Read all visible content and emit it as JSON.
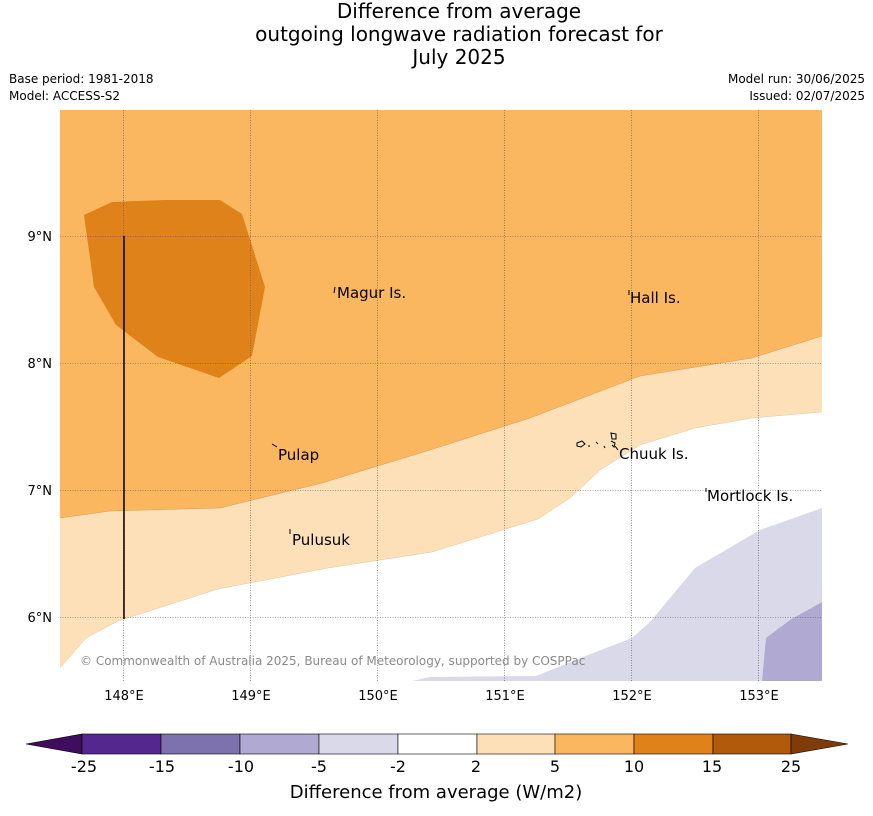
{
  "title": {
    "line1": "Difference from average",
    "line2": "outgoing longwave radiation forecast for",
    "line3": "July 2025"
  },
  "meta": {
    "base_period": "Base period: 1981-2018",
    "model": "Model: ACCESS-S2",
    "model_run": "Model run: 30/06/2025",
    "issued": "Issued: 02/07/2025"
  },
  "map": {
    "lon_ticks": [
      "148°E",
      "149°E",
      "150°E",
      "151°E",
      "152°E",
      "153°E"
    ],
    "lat_ticks": [
      "9°N",
      "8°N",
      "7°N",
      "6°N"
    ],
    "places": [
      {
        "name": "Magur Is."
      },
      {
        "name": "Hall Is."
      },
      {
        "name": "Pulap"
      },
      {
        "name": "Chuuk Is."
      },
      {
        "name": "Mortlock Is."
      },
      {
        "name": "Pulusuk"
      }
    ],
    "credit": "© Commonwealth of Australia 2025, Bureau of Meteorology, supported by COSPPac"
  },
  "legend": {
    "title": "Difference from average (W/m2)",
    "boundaries": [
      "-25",
      "-15",
      "-10",
      "-5",
      "-2",
      "2",
      "5",
      "10",
      "15",
      "25"
    ],
    "colors": [
      "#3f0c5e",
      "#54278f",
      "#7e72ae",
      "#b0a9d1",
      "#d9d9e9",
      "#ffffff",
      "#fde0b7",
      "#fbb660",
      "#e0821a",
      "#b25a0c",
      "#7f3b08"
    ]
  }
}
